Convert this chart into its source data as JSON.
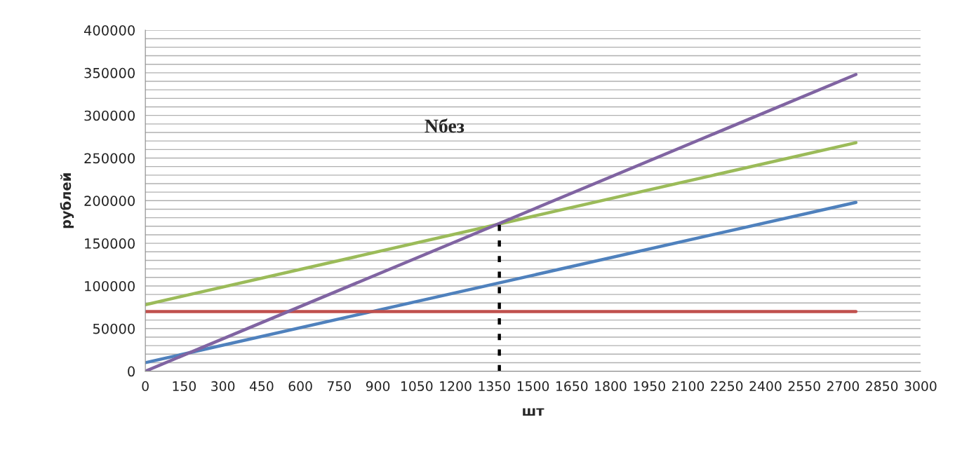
{
  "chart_data": {
    "type": "line",
    "xlabel": "шт",
    "ylabel": "рублей",
    "annotations": [
      "Nбез"
    ],
    "series": [
      {
        "color": "#4f81bd",
        "x": [
          0,
          2750
        ],
        "values": [
          10000,
          198000
        ]
      },
      {
        "color": "#c0504d",
        "x": [
          0,
          2750
        ],
        "values": [
          70000,
          70000
        ]
      },
      {
        "color": "#9bbb59",
        "x": [
          0,
          2750
        ],
        "values": [
          78000,
          268000
        ]
      },
      {
        "color": "#8064a2",
        "x": [
          0,
          2750
        ],
        "values": [
          0,
          348000
        ]
      },
      {
        "color": "#000000",
        "x": [
          1370,
          1370
        ],
        "values": [
          0,
          176000
        ],
        "line_style": "dashed"
      }
    ],
    "xlim": [
      0,
      3000
    ],
    "xticks": [
      0,
      150,
      300,
      450,
      600,
      750,
      900,
      1050,
      1200,
      1350,
      1500,
      1650,
      1800,
      1950,
      2100,
      2250,
      2400,
      2550,
      2700,
      2850,
      3000
    ],
    "ylim": [
      0,
      400000
    ],
    "yticks": [
      0,
      {
        "value": 10000,
        "label": null
      },
      {
        "value": 20000,
        "label": null
      },
      {
        "value": 30000,
        "label": null
      },
      {
        "value": 40000,
        "label": null
      },
      50000,
      {
        "value": 60000,
        "label": null
      },
      {
        "value": 70000,
        "label": null
      },
      {
        "value": 80000,
        "label": null
      },
      {
        "value": 90000,
        "label": null
      },
      100000,
      {
        "value": 110000,
        "label": null
      },
      {
        "value": 120000,
        "label": null
      },
      {
        "value": 130000,
        "label": null
      },
      {
        "value": 140000,
        "label": null
      },
      150000,
      {
        "value": 160000,
        "label": null
      },
      {
        "value": 170000,
        "label": null
      },
      {
        "value": 180000,
        "label": null
      },
      {
        "value": 190000,
        "label": null
      },
      200000,
      {
        "value": 210000,
        "label": null
      },
      {
        "value": 220000,
        "label": null
      },
      {
        "value": 230000,
        "label": null
      },
      {
        "value": 240000,
        "label": null
      },
      250000,
      {
        "value": 260000,
        "label": null
      },
      {
        "value": 270000,
        "label": null
      },
      {
        "value": 280000,
        "label": null
      },
      {
        "value": 290000,
        "label": null
      },
      300000,
      {
        "value": 310000,
        "label": null
      },
      {
        "value": 320000,
        "label": null
      },
      {
        "value": 330000,
        "label": null
      },
      {
        "value": 340000,
        "label": null
      },
      350000,
      {
        "value": 360000,
        "label": null
      },
      {
        "value": 370000,
        "label": null
      },
      {
        "value": 380000,
        "label": null
      },
      {
        "value": 390000,
        "label": null
      },
      400000
    ],
    "grid": "y",
    "marker": "none"
  }
}
